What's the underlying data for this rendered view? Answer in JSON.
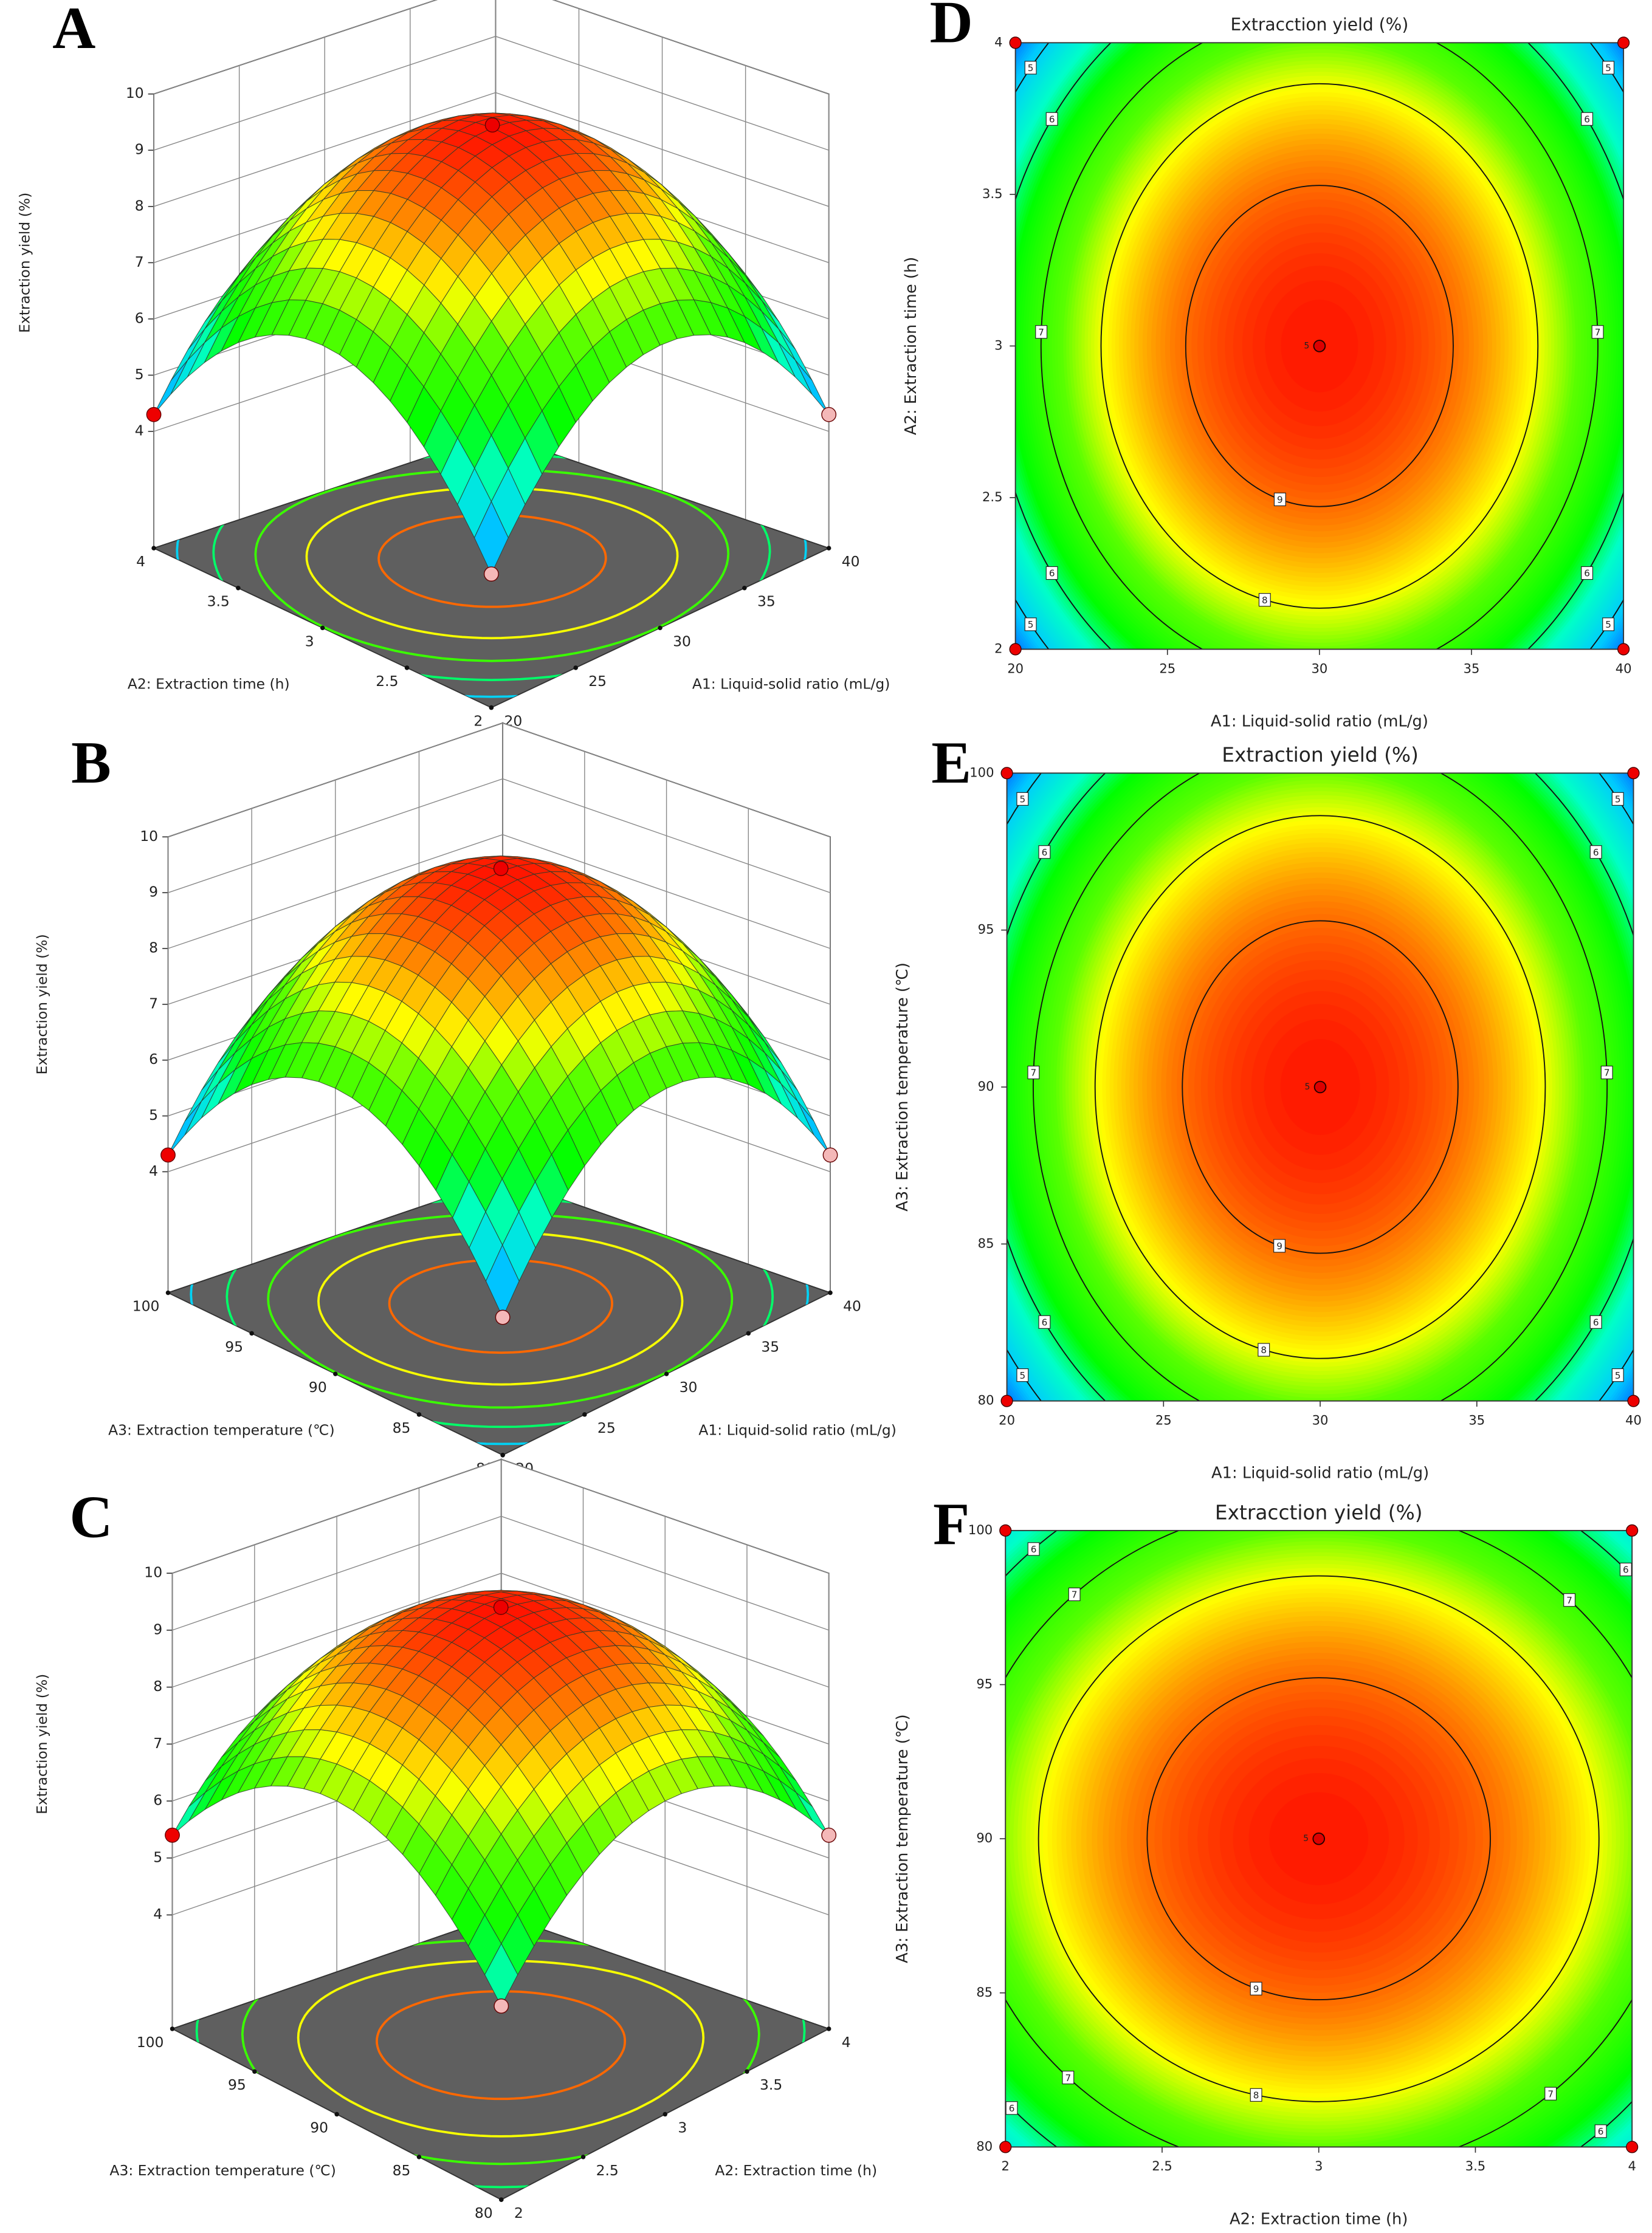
{
  "chart_data": [
    {
      "type": "surface3d",
      "label": "A",
      "zlabel": "Extraction yield (%)",
      "xlabel": "A1: Liquid-solid ratio (mL/g)",
      "ylabel": "A2: Extraction time (h)",
      "xlim": [
        20,
        40
      ],
      "xticks": [
        20,
        25,
        30,
        35,
        40
      ],
      "ylim": [
        2,
        4
      ],
      "yticks": [
        2,
        2.5,
        3,
        3.5,
        4
      ],
      "zlim": [
        4,
        10
      ],
      "zticks": [
        4,
        5,
        6,
        7,
        8,
        9,
        10
      ],
      "peak": 9.6,
      "corner": 4.3
    },
    {
      "type": "surface3d",
      "label": "B",
      "zlabel": "Extraction yield (%)",
      "xlabel": "A1: Liquid-solid ratio (mL/g)",
      "ylabel": "A3: Extraction temperature (℃)",
      "xlim": [
        20,
        40
      ],
      "xticks": [
        20,
        25,
        30,
        35,
        40
      ],
      "ylim": [
        80,
        100
      ],
      "yticks": [
        80,
        85,
        90,
        95,
        100
      ],
      "zlim": [
        4,
        10
      ],
      "zticks": [
        4,
        5,
        6,
        7,
        8,
        9,
        10
      ],
      "peak": 9.6,
      "corner": 4.3
    },
    {
      "type": "surface3d",
      "label": "C",
      "zlabel": "Extraction yield (%)",
      "xlabel": "A2: Extraction time (h)",
      "ylabel": "A3: Extraction temperature (℃)",
      "xlim": [
        2,
        4
      ],
      "xticks": [
        2,
        2.5,
        3,
        3.5,
        4
      ],
      "ylim": [
        80,
        100
      ],
      "yticks": [
        80,
        85,
        90,
        95,
        100
      ],
      "zlim": [
        4,
        10
      ],
      "zticks": [
        4,
        5,
        6,
        7,
        8,
        9,
        10
      ],
      "peak": 9.6,
      "corner": 5.4
    },
    {
      "type": "contour",
      "label": "D",
      "title": "Extracction yield (%)",
      "xlabel": "A1: Liquid-solid ratio (mL/g)",
      "ylabel": "A2: Extraction time (h)",
      "xlim": [
        20,
        40
      ],
      "xticks": [
        20,
        25,
        30,
        35,
        40
      ],
      "ylim": [
        2,
        4
      ],
      "yticks": [
        2,
        2.5,
        3,
        3.5,
        4
      ],
      "peak": 9.6,
      "edge_x": 6.5,
      "edge_y": 7.46,
      "contour_levels": [
        5,
        6,
        7,
        8,
        9
      ],
      "contour_labels": [
        5,
        6,
        7,
        6,
        5,
        8,
        9,
        5,
        6,
        7,
        6,
        5
      ],
      "center_label": 5
    },
    {
      "type": "contour",
      "label": "E",
      "title": "Extraction yield (%)",
      "xlabel": "A1: Liquid-solid ratio (mL/g)",
      "ylabel": "A3: Extraction temperature (℃)",
      "xlim": [
        20,
        40
      ],
      "xticks": [
        20,
        25,
        30,
        35,
        40
      ],
      "ylim": [
        80,
        100
      ],
      "yticks": [
        80,
        85,
        90,
        95,
        100
      ],
      "peak": 9.6,
      "edge_x": 6.5,
      "edge_y": 7.46,
      "contour_levels": [
        5,
        6,
        7,
        8,
        9
      ],
      "contour_labels": [
        5,
        6,
        7,
        6,
        5,
        8,
        9,
        5,
        6,
        7,
        6,
        5
      ],
      "center_label": 5
    },
    {
      "type": "contour",
      "label": "F",
      "title": "Extracction yield (%)",
      "xlabel": "A2: Extraction time (h)",
      "ylabel": "A3: Extraction temperature (℃)",
      "xlim": [
        2,
        4
      ],
      "xticks": [
        2,
        2.5,
        3,
        3.5,
        4
      ],
      "ylim": [
        80,
        100
      ],
      "yticks": [
        80,
        85,
        90,
        95,
        100
      ],
      "peak": 9.6,
      "edge_x": 7.6,
      "edge_y": 7.4,
      "contour_levels": [
        6,
        7,
        8,
        9
      ],
      "contour_labels": [
        6,
        7,
        9,
        8,
        7,
        6,
        7,
        6,
        7,
        6
      ],
      "center_label": 5
    }
  ]
}
